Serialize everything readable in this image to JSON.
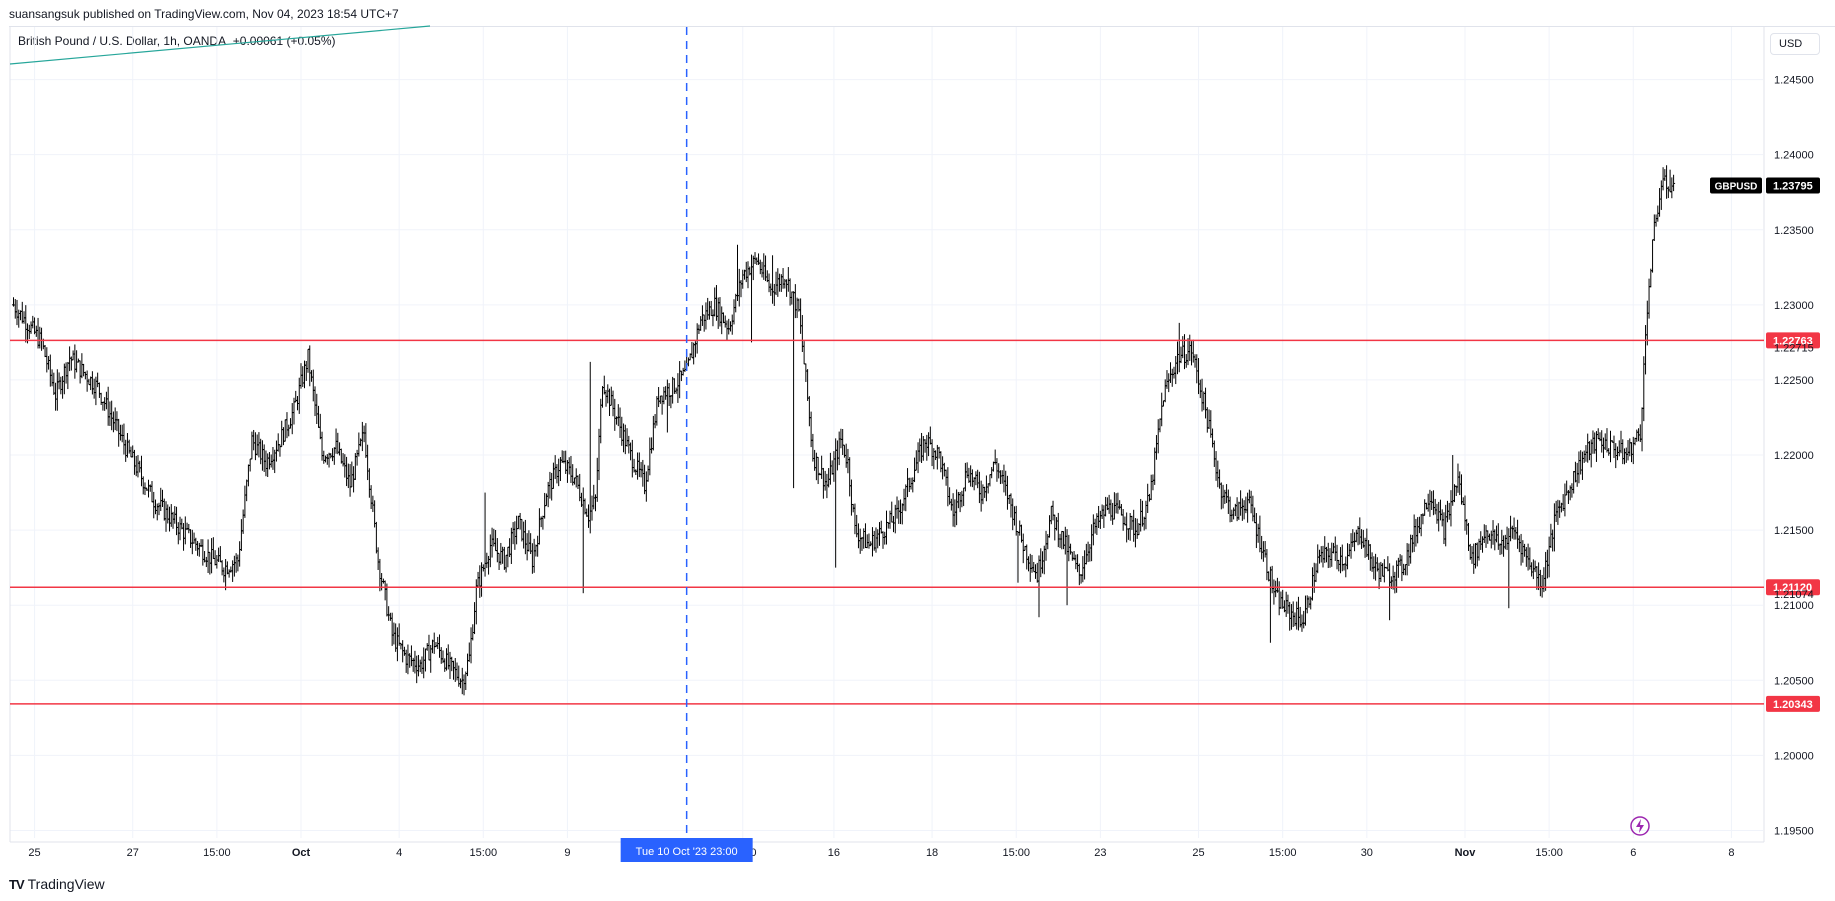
{
  "header": {
    "published": "suansangsuk published on TradingView.com, Nov 04, 2023 18:54 UTC+7",
    "symbol_line": "British Pound / U.S. Dollar, 1h, OANDA",
    "change": "+0.00061 (+0.05%)",
    "currency_button": "USD"
  },
  "footer": {
    "logo_mark": "TV",
    "logo_text": "TradingView"
  },
  "colors": {
    "level_line": "#f23645",
    "crosshair": "#2962ff",
    "candle": "#000000",
    "grid": "#f0f3fa",
    "trendline": "#26a69a",
    "price_tag_bg": "#000000",
    "date_tag_bg": "#2962ff"
  },
  "icons": {
    "bottom_right": "lightning-icon"
  },
  "chart_data": {
    "type": "ohlc",
    "symbol": "GBPUSD",
    "timeframe": "1h",
    "ylim": [
      1.1945,
      1.2485
    ],
    "y_ticks": [
      "1.24500",
      "1.24000",
      "1.23500",
      "1.23000",
      "1.22500",
      "1.22000",
      "1.21500",
      "1.21000",
      "1.20500",
      "1.20000",
      "1.19500"
    ],
    "x_ticks": [
      {
        "label": "25",
        "i": 3
      },
      {
        "label": "27",
        "i": 17
      },
      {
        "label": "15:00",
        "i": 29
      },
      {
        "label": "Oct",
        "i": 41
      },
      {
        "label": "4",
        "i": 55
      },
      {
        "label": "15:00",
        "i": 67
      },
      {
        "label": "9",
        "i": 79
      },
      {
        "label": "15:00",
        "i": 104
      },
      {
        "label": "16",
        "i": 117
      },
      {
        "label": "18",
        "i": 131
      },
      {
        "label": "15:00",
        "i": 143
      },
      {
        "label": "23",
        "i": 155
      },
      {
        "label": "25",
        "i": 169
      },
      {
        "label": "15:00",
        "i": 181
      },
      {
        "label": "30",
        "i": 193
      },
      {
        "label": "Nov",
        "i": 207
      },
      {
        "label": "15:00",
        "i": 219
      },
      {
        "label": "6",
        "i": 231
      },
      {
        "label": "8",
        "i": 245
      }
    ],
    "x_count": 250,
    "levels": [
      {
        "value": 1.22763,
        "label": "1.22763"
      },
      {
        "value": 1.2112,
        "label": "1.21120"
      },
      {
        "value": 1.20343,
        "label": "1.20343"
      }
    ],
    "extra_price_labels": [
      {
        "value": 1.22715,
        "label": "1.22715"
      },
      {
        "value": 1.21074,
        "label": "1.21074"
      }
    ],
    "last_price": {
      "value": 1.23795,
      "label": "1.23795",
      "symbol": "GBPUSD"
    },
    "crosshair": {
      "i": 96,
      "label": "Tue 10 Oct '23   23:00"
    },
    "path": [
      [
        0,
        1.23
      ],
      [
        4,
        1.2275
      ],
      [
        6,
        1.224
      ],
      [
        8,
        1.2265
      ],
      [
        12,
        1.2245
      ],
      [
        16,
        1.2205
      ],
      [
        20,
        1.217
      ],
      [
        24,
        1.215
      ],
      [
        28,
        1.2132
      ],
      [
        30,
        1.2125
      ],
      [
        32,
        1.213
      ],
      [
        34,
        1.221
      ],
      [
        36,
        1.2195
      ],
      [
        38,
        1.221
      ],
      [
        40,
        1.223
      ],
      [
        42,
        1.2265
      ],
      [
        44,
        1.22
      ],
      [
        46,
        1.2205
      ],
      [
        48,
        1.218
      ],
      [
        50,
        1.2215
      ],
      [
        52,
        1.213
      ],
      [
        54,
        1.208
      ],
      [
        56,
        1.2065
      ],
      [
        58,
        1.206
      ],
      [
        60,
        1.2075
      ],
      [
        62,
        1.206
      ],
      [
        64,
        1.205
      ],
      [
        65,
        1.2065
      ],
      [
        66,
        1.211
      ],
      [
        68,
        1.214
      ],
      [
        70,
        1.213
      ],
      [
        72,
        1.2155
      ],
      [
        74,
        1.213
      ],
      [
        76,
        1.2175
      ],
      [
        78,
        1.2195
      ],
      [
        80,
        1.2185
      ],
      [
        82,
        1.216
      ],
      [
        83,
        1.217
      ],
      [
        84,
        1.225
      ],
      [
        86,
        1.2225
      ],
      [
        88,
        1.22
      ],
      [
        90,
        1.218
      ],
      [
        92,
        1.224
      ],
      [
        94,
        1.2245
      ],
      [
        96,
        1.2255
      ],
      [
        98,
        1.229
      ],
      [
        100,
        1.23
      ],
      [
        102,
        1.2285
      ],
      [
        104,
        1.232
      ],
      [
        106,
        1.233
      ],
      [
        108,
        1.231
      ],
      [
        110,
        1.232
      ],
      [
        112,
        1.2295
      ],
      [
        113,
        1.225
      ],
      [
        114,
        1.22
      ],
      [
        116,
        1.218
      ],
      [
        118,
        1.221
      ],
      [
        119,
        1.2195
      ],
      [
        120,
        1.215
      ],
      [
        122,
        1.214
      ],
      [
        124,
        1.215
      ],
      [
        126,
        1.216
      ],
      [
        128,
        1.2185
      ],
      [
        130,
        1.221
      ],
      [
        132,
        1.22
      ],
      [
        134,
        1.216
      ],
      [
        136,
        1.219
      ],
      [
        138,
        1.2175
      ],
      [
        140,
        1.2195
      ],
      [
        142,
        1.217
      ],
      [
        144,
        1.214
      ],
      [
        146,
        1.212
      ],
      [
        148,
        1.216
      ],
      [
        150,
        1.214
      ],
      [
        152,
        1.212
      ],
      [
        154,
        1.215
      ],
      [
        156,
        1.2165
      ],
      [
        158,
        1.216
      ],
      [
        160,
        1.215
      ],
      [
        162,
        1.217
      ],
      [
        164,
        1.224
      ],
      [
        166,
        1.2265
      ],
      [
        168,
        1.227
      ],
      [
        170,
        1.223
      ],
      [
        172,
        1.218
      ],
      [
        174,
        1.216
      ],
      [
        176,
        1.217
      ],
      [
        178,
        1.214
      ],
      [
        180,
        1.2105
      ],
      [
        182,
        1.2095
      ],
      [
        184,
        1.209
      ],
      [
        186,
        1.213
      ],
      [
        188,
        1.2135
      ],
      [
        190,
        1.213
      ],
      [
        192,
        1.215
      ],
      [
        194,
        1.2125
      ],
      [
        196,
        1.212
      ],
      [
        198,
        1.2125
      ],
      [
        200,
        1.215
      ],
      [
        202,
        1.2175
      ],
      [
        204,
        1.215
      ],
      [
        206,
        1.2185
      ],
      [
        208,
        1.213
      ],
      [
        210,
        1.215
      ],
      [
        212,
        1.214
      ],
      [
        214,
        1.215
      ],
      [
        216,
        1.213
      ],
      [
        218,
        1.2115
      ],
      [
        220,
        1.216
      ],
      [
        222,
        1.218
      ],
      [
        224,
        1.22
      ],
      [
        226,
        1.221
      ],
      [
        228,
        1.2205
      ],
      [
        230,
        1.22
      ],
      [
        232,
        1.2215
      ],
      [
        233,
        1.23
      ],
      [
        234,
        1.235
      ],
      [
        235,
        1.238
      ],
      [
        236,
        1.238
      ]
    ],
    "extremes": [
      {
        "i": 1,
        "v": 1.2302
      },
      {
        "i": 12,
        "v": 1.2238
      },
      {
        "i": 30,
        "v": 1.211
      },
      {
        "i": 42,
        "v": 1.2273
      },
      {
        "i": 49,
        "v": 1.2215
      },
      {
        "i": 64,
        "v": 1.204
      },
      {
        "i": 67,
        "v": 1.2175
      },
      {
        "i": 81,
        "v": 1.2108
      },
      {
        "i": 82,
        "v": 1.2262
      },
      {
        "i": 93,
        "v": 1.2215
      },
      {
        "i": 103,
        "v": 1.234
      },
      {
        "i": 105,
        "v": 1.2275
      },
      {
        "i": 108,
        "v": 1.2333
      },
      {
        "i": 111,
        "v": 1.2178
      },
      {
        "i": 117,
        "v": 1.2125
      },
      {
        "i": 143,
        "v": 1.2115
      },
      {
        "i": 146,
        "v": 1.2092
      },
      {
        "i": 150,
        "v": 1.21
      },
      {
        "i": 166,
        "v": 1.2288
      },
      {
        "i": 179,
        "v": 1.2075
      },
      {
        "i": 196,
        "v": 1.209
      },
      {
        "i": 205,
        "v": 1.22
      },
      {
        "i": 213,
        "v": 1.2098
      },
      {
        "i": 236,
        "v": 1.239
      }
    ]
  }
}
